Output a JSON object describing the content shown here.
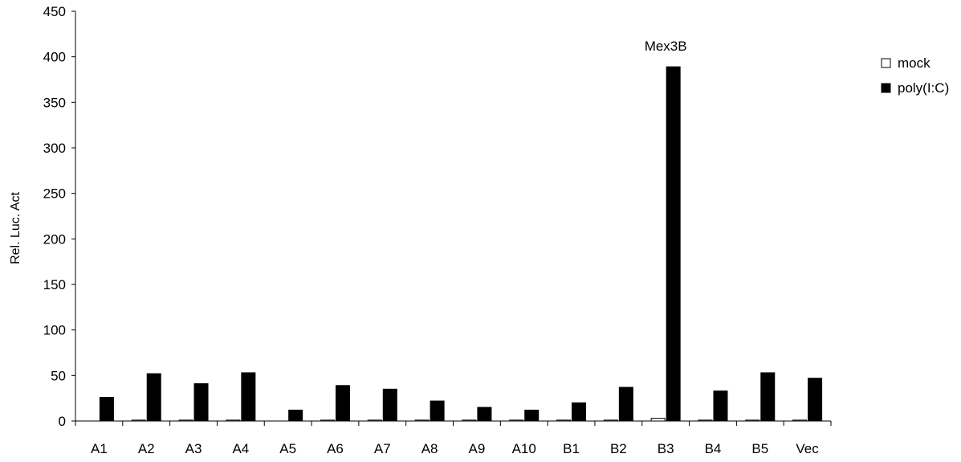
{
  "chart_data": {
    "type": "bar",
    "title": "",
    "xlabel": "",
    "ylabel": "Rel. Luc. Act",
    "ylim": [
      0,
      450
    ],
    "yticks": [
      0,
      50,
      100,
      150,
      200,
      250,
      300,
      350,
      400,
      450
    ],
    "grid": false,
    "legend_position": "right",
    "categories": [
      "A1",
      "A2",
      "A3",
      "A4",
      "A5",
      "A6",
      "A7",
      "A8",
      "A9",
      "A10",
      "B1",
      "B2",
      "B3",
      "B4",
      "B5",
      "Vec"
    ],
    "series": [
      {
        "name": "mock",
        "color": "#ffffff",
        "values": [
          0,
          1,
          1,
          1,
          0,
          1,
          1,
          1,
          1,
          1,
          1,
          1,
          3,
          1,
          1,
          1
        ]
      },
      {
        "name": "poly(I:C)",
        "color": "#000000",
        "values": [
          26,
          52,
          41,
          53,
          12,
          39,
          35,
          22,
          15,
          12,
          20,
          37,
          389,
          33,
          53,
          47
        ]
      }
    ],
    "annotations": [
      {
        "text": "Mex3B",
        "category": "B3"
      }
    ]
  }
}
